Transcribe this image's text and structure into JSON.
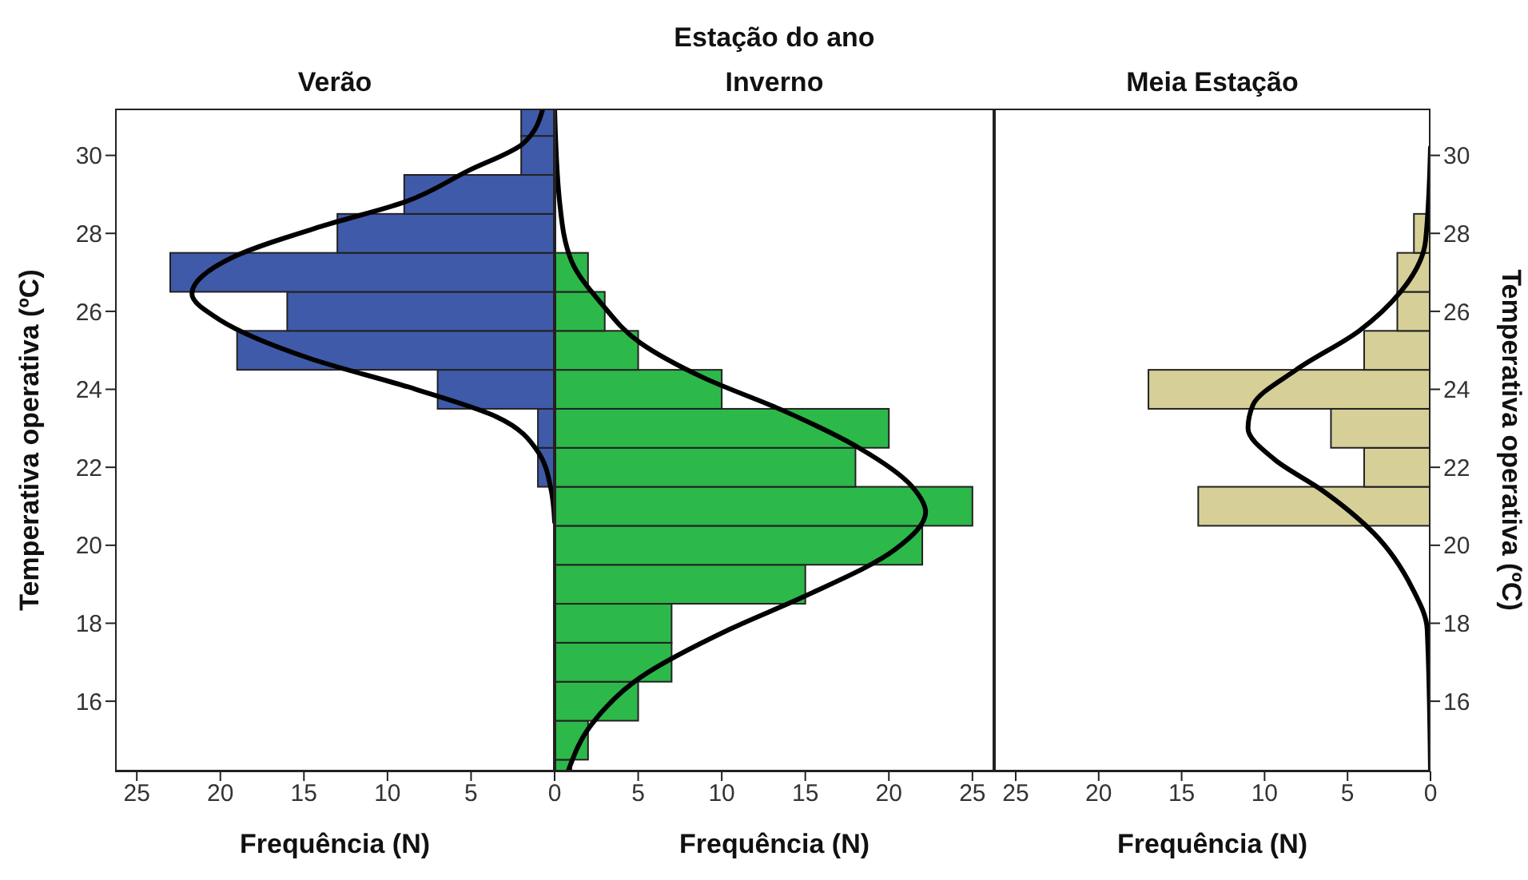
{
  "chart_data": [
    {
      "type": "histogram",
      "orientation": "horizontal",
      "title": "Verão",
      "xlabel": "Frequência (N)",
      "ylabel": "Temperativa operativa (ºC)",
      "color": "#3f5aa8",
      "bins": [
        21.5,
        22.5,
        23.5,
        24.5,
        25.5,
        26.5,
        27.5,
        28.5,
        29.5,
        30.5,
        31.2
      ],
      "values": [
        1,
        1,
        7,
        19,
        16,
        23,
        13,
        9,
        2,
        2
      ],
      "xlim": [
        26.3,
        0
      ],
      "xticks": [
        25,
        20,
        15,
        10,
        5,
        {
          "value": 0,
          "label": null
        }
      ],
      "ylim": [
        14.2,
        31.2
      ],
      "yticks": [
        16,
        18,
        20,
        22,
        24,
        26,
        28,
        30
      ],
      "series": [
        {
          "type": "line",
          "color": "#000000",
          "x": [
            20.6,
            21.4,
            22.4,
            23.3,
            24.0,
            24.8,
            25.8,
            26.45,
            27.4,
            28.2,
            28.8,
            29.6,
            30.3,
            31.2
          ],
          "values": [
            0,
            0.2,
            1.0,
            3.5,
            8.3,
            14.7,
            20.1,
            21.7,
            19.2,
            13.8,
            9.0,
            5.2,
            1.9,
            0.7
          ]
        }
      ]
    },
    {
      "type": "histogram",
      "orientation": "horizontal",
      "title": "Inverno",
      "xlabel": "Frequência (N)",
      "annotations": [
        "Estação do ano"
      ],
      "tick_labels": "x",
      "color": "#2db84a",
      "bins": [
        14.2,
        14.5,
        15.5,
        16.5,
        17.5,
        18.5,
        19.5,
        20.5,
        21.5,
        22.5,
        23.5,
        24.5,
        25.5,
        26.5,
        27.5
      ],
      "values": [
        1,
        2,
        5,
        7,
        7,
        15,
        22,
        25,
        18,
        20,
        10,
        5,
        3,
        2
      ],
      "xlim": [
        0,
        26.3
      ],
      "xticks": [
        0,
        5,
        10,
        15,
        20,
        25
      ],
      "ylim": [
        14.2,
        31.2
      ],
      "yticks": [
        16,
        18,
        20,
        22,
        24,
        26,
        28,
        30
      ],
      "series": [
        {
          "type": "line",
          "color": "#000000",
          "x": [
            14.2,
            15.4,
            16.6,
            17.85,
            18.7,
            19.9,
            20.85,
            21.5,
            22.5,
            23.45,
            24.3,
            25.2,
            26.2,
            27.3,
            28.8,
            31.2
          ],
          "values": [
            0.8,
            2.2,
            5.1,
            10.5,
            15.0,
            20.4,
            22.2,
            21.4,
            18.2,
            13.7,
            8.9,
            5.1,
            2.8,
            1.0,
            0.3,
            0
          ]
        }
      ]
    },
    {
      "type": "histogram",
      "orientation": "horizontal",
      "title": "Meia Estação",
      "xlabel": "Frequência (N)",
      "ylabel": "Temperativa operativa (ºC)",
      "color": "#d6cf98",
      "bins": [
        20.5,
        21.5,
        22.5,
        23.5,
        24.5,
        25.5,
        26.5,
        27.5,
        28.5
      ],
      "values": [
        14,
        4,
        6,
        17,
        4,
        2,
        2,
        1
      ],
      "xlim": [
        26.3,
        0
      ],
      "xticks": [
        25,
        20,
        15,
        10,
        5,
        0
      ],
      "ylim": [
        14.2,
        31.2
      ],
      "yticks": [
        16,
        18,
        20,
        22,
        24,
        26,
        28,
        30
      ],
      "series": [
        {
          "type": "line",
          "color": "#000000",
          "x": [
            14.2,
            17.85,
            18.9,
            20.3,
            21.4,
            22.2,
            23.0,
            23.6,
            24.5,
            25.5,
            26.5,
            27.8,
            30.2
          ],
          "values": [
            0,
            0.2,
            1.1,
            3.4,
            6.5,
            9.4,
            11.0,
            10.7,
            8.1,
            4.3,
            1.8,
            0.3,
            0
          ]
        }
      ]
    }
  ]
}
